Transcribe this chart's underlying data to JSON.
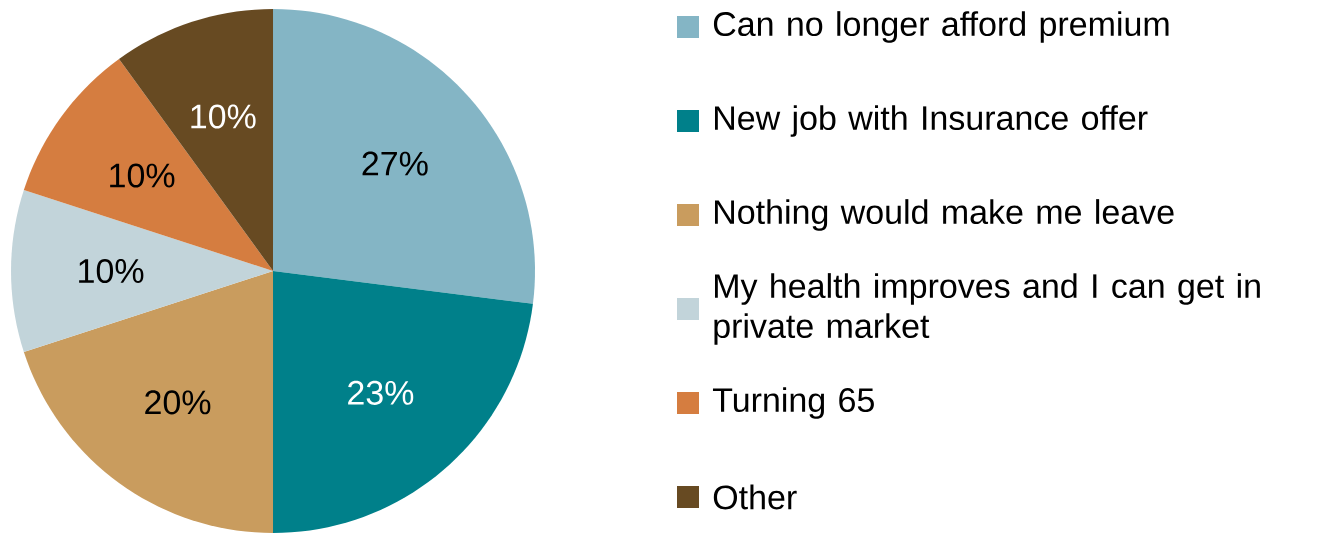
{
  "chart_data": {
    "type": "pie",
    "categories": [
      "Can no longer afford premium",
      "New job with Insurance offer",
      "Nothing would make me leave",
      "My health improves and I can get in private market",
      "Turning 65",
      "Other"
    ],
    "values": [
      27,
      23,
      20,
      10,
      10,
      10
    ],
    "colors": [
      "#84b5c5",
      "#00808a",
      "#c99c5e",
      "#c2d4da",
      "#d57d40",
      "#674a22"
    ],
    "value_labels": [
      "27%",
      "23%",
      "20%",
      "10%",
      "10%",
      "10%"
    ],
    "legend": "right"
  }
}
